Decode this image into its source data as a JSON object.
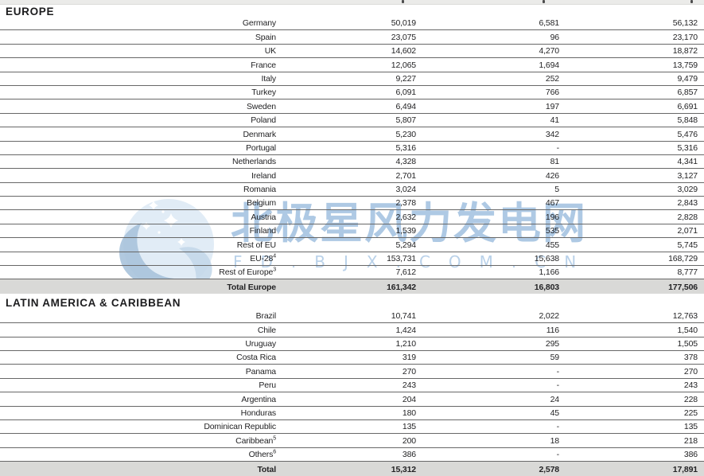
{
  "colors": {
    "row_line": "#686868",
    "total_row_bg": "#d9d9d7",
    "text": "#232325",
    "top_strip_bg": "#ebebe9",
    "watermark_blue_light": "#dce9f4",
    "watermark_blue_mid": "#a9c3dc",
    "watermark_text_blue": "#9abbdd"
  },
  "watermark": {
    "cjk_text": "北极星风力发电网",
    "url_text": "FD.BJX.COM.CN",
    "logo": "polaris-circle-wave-stars"
  },
  "table": {
    "sections": [
      {
        "header": "EUROPE",
        "rows": [
          {
            "label": "Germany",
            "values": [
              "50,019",
              "6,581",
              "56,132"
            ]
          },
          {
            "label": "Spain",
            "values": [
              "23,075",
              "96",
              "23,170"
            ]
          },
          {
            "label": "UK",
            "values": [
              "14,602",
              "4,270",
              "18,872"
            ]
          },
          {
            "label": "France",
            "values": [
              "12,065",
              "1,694",
              "13,759"
            ]
          },
          {
            "label": "Italy",
            "values": [
              "9,227",
              "252",
              "9,479"
            ]
          },
          {
            "label": "Turkey",
            "values": [
              "6,091",
              "766",
              "6,857"
            ]
          },
          {
            "label": "Sweden",
            "values": [
              "6,494",
              "197",
              "6,691"
            ]
          },
          {
            "label": "Poland",
            "values": [
              "5,807",
              "41",
              "5,848"
            ]
          },
          {
            "label": "Denmark",
            "values": [
              "5,230",
              "342",
              "5,476"
            ]
          },
          {
            "label": "Portugal",
            "values": [
              "5,316",
              "-",
              "5,316"
            ]
          },
          {
            "label": "Netherlands",
            "values": [
              "4,328",
              "81",
              "4,341"
            ]
          },
          {
            "label": "Ireland",
            "values": [
              "2,701",
              "426",
              "3,127"
            ]
          },
          {
            "label": "Romania",
            "values": [
              "3,024",
              "5",
              "3,029"
            ]
          },
          {
            "label": "Belgium",
            "values": [
              "2,378",
              "467",
              "2,843"
            ]
          },
          {
            "label": "Austria",
            "values": [
              "2,632",
              "196",
              "2,828"
            ]
          },
          {
            "label": "Finland",
            "values": [
              "1,539",
              "535",
              "2,071"
            ]
          },
          {
            "label": "Rest of EU",
            "values": [
              "5,294",
              "455",
              "5,745"
            ]
          },
          {
            "label": "EU-28",
            "footnote": "4",
            "values": [
              "153,731",
              "15,638",
              "168,729"
            ]
          },
          {
            "label": "Rest of Europe",
            "footnote": "3",
            "values": [
              "7,612",
              "1,166",
              "8,777"
            ]
          },
          {
            "label": "Total Europe",
            "is_total": true,
            "values": [
              "161,342",
              "16,803",
              "177,506"
            ]
          }
        ]
      },
      {
        "header": "LATIN AMERICA & CARIBBEAN",
        "rows": [
          {
            "label": "Brazil",
            "values": [
              "10,741",
              "2,022",
              "12,763"
            ]
          },
          {
            "label": "Chile",
            "values": [
              "1,424",
              "116",
              "1,540"
            ]
          },
          {
            "label": "Uruguay",
            "values": [
              "1,210",
              "295",
              "1,505"
            ]
          },
          {
            "label": "Costa Rica",
            "values": [
              "319",
              "59",
              "378"
            ]
          },
          {
            "label": "Panama",
            "values": [
              "270",
              "-",
              "270"
            ]
          },
          {
            "label": "Peru",
            "values": [
              "243",
              "-",
              "243"
            ]
          },
          {
            "label": "Argentina",
            "values": [
              "204",
              "24",
              "228"
            ]
          },
          {
            "label": "Honduras",
            "values": [
              "180",
              "45",
              "225"
            ]
          },
          {
            "label": "Dominican Republic",
            "values": [
              "135",
              "-",
              "135"
            ]
          },
          {
            "label": "Caribbean",
            "footnote": "5",
            "values": [
              "200",
              "18",
              "218"
            ]
          },
          {
            "label": "Others",
            "footnote": "6",
            "values": [
              "386",
              "-",
              "386"
            ]
          },
          {
            "label": "Total",
            "is_total": true,
            "values": [
              "15,312",
              "2,578",
              "17,891"
            ]
          }
        ]
      }
    ]
  }
}
